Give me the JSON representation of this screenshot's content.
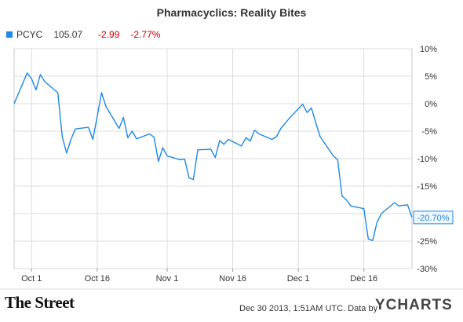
{
  "colors": {
    "line": "#1e88e5",
    "plot_bg": "#ffffff",
    "outer_bg": "#ffffff",
    "grid": "#dcdcdc",
    "negative": "#cc0000",
    "legend_swatch": "#1e88e5",
    "end_label_bg": "#eef6ff"
  },
  "header": {
    "title": "Pharmacyclics: Reality Bites"
  },
  "legend": {
    "ticker": "PCYC",
    "price": "105.07",
    "change": "-2.99",
    "change_pct": "-2.77%"
  },
  "end_label": "-20.70%",
  "footer": {
    "logo": "The Street",
    "timestamp": "Dec 30 2013, 1:51AM UTC. Data by",
    "ycharts": "YCHARTS"
  },
  "chart_data": {
    "type": "line",
    "title": "Pharmacyclics: Reality Bites",
    "xlabel": "",
    "ylabel": "",
    "ylim": [
      -30,
      10
    ],
    "grid": true,
    "legend": "top-left",
    "x_tick_labels": [
      "Oct 1",
      "Oct 16",
      "Nov 1",
      "Nov 16",
      "Dec 1",
      "Dec 16"
    ],
    "y_tick_labels": [
      "10%",
      "5%",
      "0%",
      "-5%",
      "-10%",
      "-15%",
      "-20%",
      "-25%",
      "-30%"
    ],
    "series": [
      {
        "name": "PCYC",
        "x": [
          "2013-09-27",
          "2013-09-30",
          "2013-10-01",
          "2013-10-02",
          "2013-10-03",
          "2013-10-04",
          "2013-10-07",
          "2013-10-08",
          "2013-10-09",
          "2013-10-10",
          "2013-10-11",
          "2013-10-14",
          "2013-10-15",
          "2013-10-16",
          "2013-10-17",
          "2013-10-18",
          "2013-10-21",
          "2013-10-22",
          "2013-10-23",
          "2013-10-24",
          "2013-10-25",
          "2013-10-28",
          "2013-10-29",
          "2013-10-30",
          "2013-10-31",
          "2013-11-01",
          "2013-11-04",
          "2013-11-05",
          "2013-11-06",
          "2013-11-07",
          "2013-11-08",
          "2013-11-11",
          "2013-11-12",
          "2013-11-13",
          "2013-11-14",
          "2013-11-15",
          "2013-11-18",
          "2013-11-19",
          "2013-11-20",
          "2013-11-21",
          "2013-11-22",
          "2013-11-25",
          "2013-11-26",
          "2013-11-27",
          "2013-11-29",
          "2013-12-02",
          "2013-12-03",
          "2013-12-04",
          "2013-12-05",
          "2013-12-06",
          "2013-12-09",
          "2013-12-10",
          "2013-12-11",
          "2013-12-12",
          "2013-12-13",
          "2013-12-16",
          "2013-12-17",
          "2013-12-18",
          "2013-12-19",
          "2013-12-20",
          "2013-12-23",
          "2013-12-24",
          "2013-12-26",
          "2013-12-27"
        ],
        "values": [
          0.0,
          5.6,
          4.5,
          2.5,
          5.3,
          4.0,
          2.0,
          -6.0,
          -9.0,
          -6.5,
          -4.6,
          -4.3,
          -6.5,
          -2.3,
          2.0,
          -0.5,
          -4.5,
          -2.5,
          -6.2,
          -5.0,
          -6.4,
          -5.5,
          -6.1,
          -10.5,
          -8.0,
          -9.5,
          -10.2,
          -10.1,
          -13.5,
          -13.8,
          -8.4,
          -8.3,
          -9.8,
          -6.7,
          -7.4,
          -6.5,
          -7.7,
          -6.2,
          -6.8,
          -4.8,
          -5.5,
          -6.5,
          -6.0,
          -4.5,
          -2.6,
          -0.1,
          -1.6,
          -0.8,
          -3.5,
          -6.0,
          -9.5,
          -10.2,
          -16.8,
          -17.5,
          -18.6,
          -19.1,
          -24.6,
          -24.9,
          -21.6,
          -20.0,
          -18.0,
          -18.6,
          -18.4,
          -20.7
        ]
      }
    ]
  }
}
